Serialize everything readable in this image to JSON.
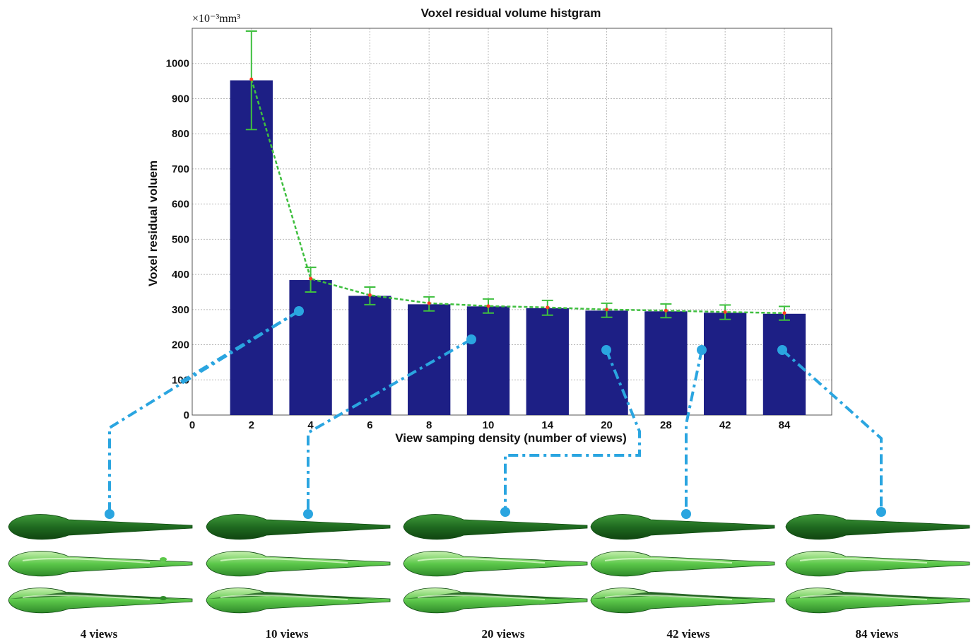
{
  "chart_data": {
    "type": "bar",
    "title": "Voxel residual volume histgram",
    "xlabel": "View samping density (number of views)",
    "ylabel": "Voxel residual voluem",
    "y_multiplier": "×10⁻³mm³",
    "x_first_tick": "0",
    "categories": [
      "2",
      "4",
      "6",
      "8",
      "10",
      "14",
      "20",
      "28",
      "42",
      "84"
    ],
    "values": [
      952,
      384,
      339,
      315,
      309,
      304,
      297,
      295,
      291,
      288
    ],
    "error_low": [
      812,
      350,
      314,
      296,
      290,
      284,
      278,
      277,
      272,
      270
    ],
    "error_high": [
      1092,
      420,
      364,
      336,
      330,
      326,
      318,
      316,
      313,
      309
    ],
    "mean_markers": [
      955,
      388,
      341,
      318,
      310,
      306,
      300,
      297,
      293,
      290
    ],
    "trend": {
      "style": "dashed",
      "color": "#3fbf3f"
    },
    "ylim": [
      0,
      1100
    ],
    "yticks": [
      0,
      100,
      200,
      300,
      400,
      500,
      600,
      700,
      800,
      900,
      1000
    ],
    "grid": true,
    "bar_color": "#1d1f85",
    "error_color": "#3fbf3f",
    "marker_color": "#ff3b1f",
    "connector_color": "#2aa5e0"
  },
  "thumbnails": [
    {
      "caption": "4 views",
      "category": "4 views",
      "noisy": true
    },
    {
      "caption": "10 views",
      "category": "10 views",
      "noisy": false
    },
    {
      "caption": "20 views",
      "category": "20 views",
      "noisy": false
    },
    {
      "caption": "42 views",
      "category": "42 views",
      "noisy": false
    },
    {
      "caption": "84 views",
      "category": "84 views",
      "noisy": false
    }
  ]
}
